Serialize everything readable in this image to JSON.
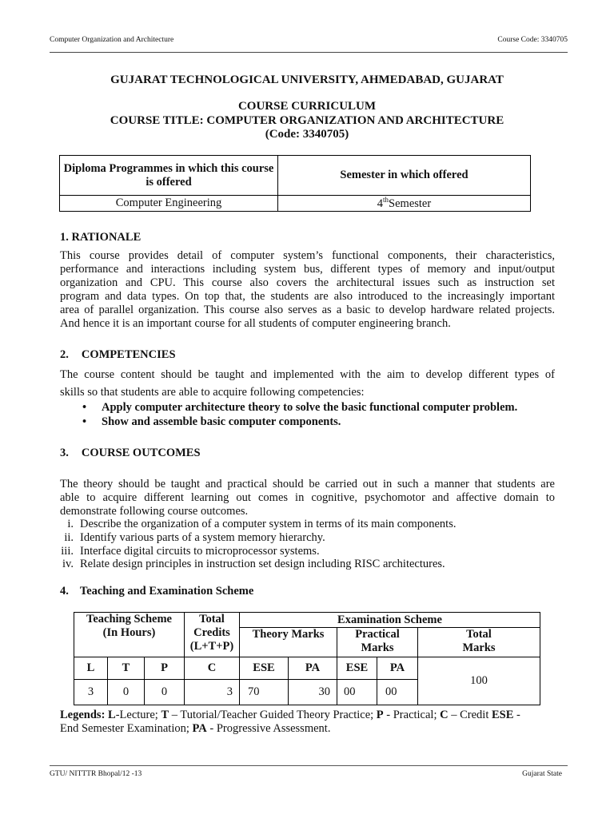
{
  "header": {
    "left": "Computer Organization and Architecture",
    "right": "Course Code: 3340705"
  },
  "university": "GUJARAT TECHNOLOGICAL UNIVERSITY, AHMEDABAD, GUJARAT",
  "curriculum": "COURSE CURRICULUM",
  "course_title": "COURSE TITLE: COMPUTER ORGANIZATION AND ARCHITECTURE",
  "course_code": "(Code: 3340705)",
  "offer_table": {
    "headers": [
      "Diploma Programmes in which this course is offered",
      "Semester in which offered"
    ],
    "programme": "Computer Engineering",
    "semester_num": "4",
    "semester_sup": "th",
    "semester_word": "Semester"
  },
  "rationale": {
    "heading": "1.  RATIONALE",
    "lines": [
      "This course provides detail of computer system’s functional components, their characteristics,",
      "performance and interactions including system bus, different types of memory and input/output",
      "organization and CPU. This course also covers the architectural issues such as instruction set",
      "program and data types. On top that, the students are also introduced to the increasingly important",
      "area of parallel organization. This course also serves as a basic to develop hardware related projects.",
      "And hence it is an important course for all students of computer engineering branch."
    ]
  },
  "competencies": {
    "number": "2.",
    "heading": "COMPETENCIES",
    "lines": [
      "The course content should be taught and implemented with the aim to develop different types of",
      "skills so that students are able to acquire following competencies:"
    ],
    "bullets": [
      "Apply computer architecture theory to solve the basic functional computer problem.",
      "Show and assemble basic computer components."
    ]
  },
  "outcomes": {
    "number": "3.",
    "heading": "COURSE OUTCOMES",
    "lines": [
      "The theory should be taught and practical should be carried out in such a manner that students are",
      "able to acquire different learning out comes in cognitive, psychomotor and affective domain to",
      "demonstrate following course outcomes."
    ],
    "items": [
      {
        "num": "i.",
        "text": "Describe the organization of a computer system in terms of its main components."
      },
      {
        "num": "ii.",
        "text": "Identify various parts of a system memory hierarchy."
      },
      {
        "num": "iii.",
        "text": "Interface digital circuits to microprocessor systems."
      },
      {
        "num": "iv.",
        "text": "Relate design principles in instruction set design including RISC architectures."
      }
    ]
  },
  "scheme": {
    "number": "4.",
    "heading": "Teaching and Examination Scheme",
    "teaching_header": [
      "Teaching Scheme",
      "(In Hours)"
    ],
    "credits_header": [
      "Total",
      "Credits",
      "(L+T+P)"
    ],
    "exam_header": "Examination Scheme",
    "theory_header": "Theory Marks",
    "practical_header": [
      "Practical",
      "Marks"
    ],
    "total_header": [
      "Total",
      "Marks"
    ],
    "columns": [
      "L",
      "T",
      "P",
      "C",
      "ESE",
      "PA",
      "ESE",
      "PA"
    ],
    "values": [
      "3",
      "0",
      "0",
      "3",
      "70",
      "30",
      "00",
      "00"
    ],
    "total": "100"
  },
  "legends": {
    "label": "Legends:",
    "parts": [
      {
        "key": "L",
        "text": "-Lecture; "
      },
      {
        "key": "T",
        "text": " – Tutorial/Teacher Guided Theory Practice; "
      },
      {
        "key": "P",
        "text": " - Practical; "
      },
      {
        "key": "C",
        "text": " – Credit "
      },
      {
        "key": "ESE",
        "text": " - "
      }
    ],
    "line2": "End Semester Examination; ",
    "pa_key": "PA",
    "pa_text": " - Progressive Assessment."
  },
  "footer": {
    "left": "GTU/ NITTTR Bhopal/12 -13",
    "right": "Gujarat State"
  }
}
